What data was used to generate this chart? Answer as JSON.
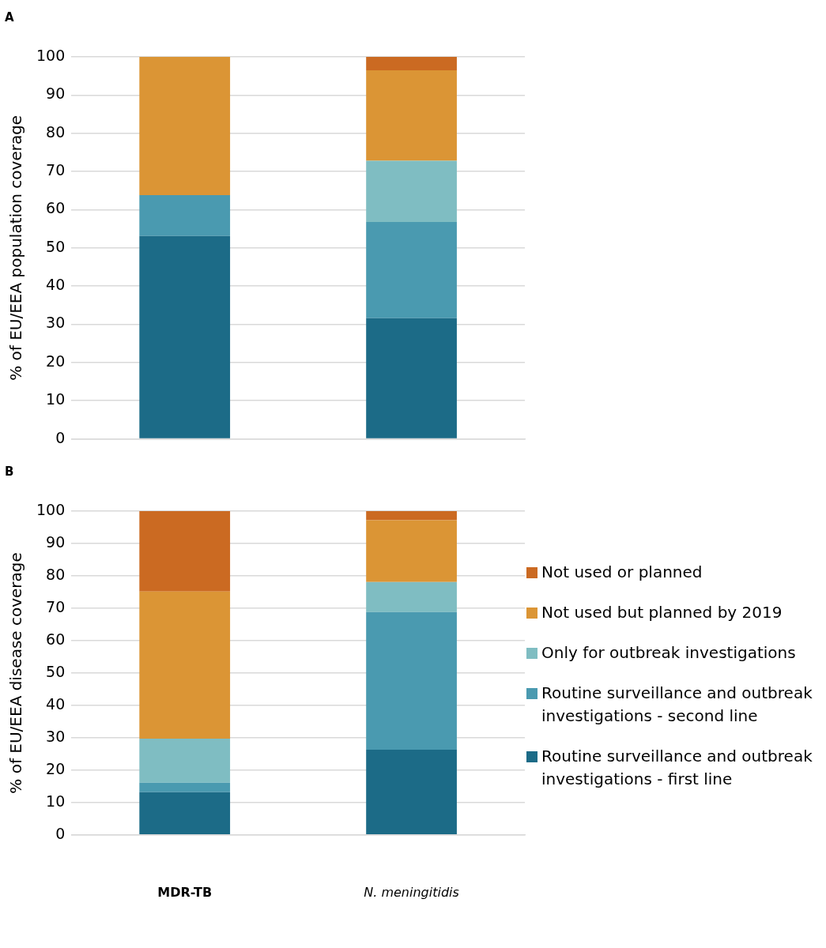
{
  "chart_data": [
    {
      "type": "bar",
      "title": "A",
      "ylabel": "% of EU/EEA population coverage",
      "categories": [
        null,
        null
      ],
      "stacked": true,
      "ylim": [
        0,
        100
      ],
      "yticks": [
        0,
        10,
        20,
        30,
        40,
        50,
        60,
        70,
        80,
        90,
        100
      ],
      "grid": "y",
      "legend": false,
      "tick_labels": "y",
      "series": [
        {
          "color": "#1c6b87",
          "values": [
            53.1,
            31.6
          ]
        },
        {
          "color": "#4a9ab0",
          "values": [
            10.7,
            25.2
          ]
        },
        {
          "color": "#7fbdc2",
          "values": [
            0,
            16.0
          ]
        },
        {
          "color": "#db9535",
          "values": [
            36.2,
            23.7
          ]
        },
        {
          "color": "#cb6a22",
          "values": [
            0,
            3.5
          ]
        }
      ]
    },
    {
      "type": "bar",
      "title": "B",
      "ylabel": "% of EU/EEA disease coverage",
      "categories": [
        "MDR-TB",
        "N. meningitidis"
      ],
      "stacked": true,
      "ylim": [
        0,
        100
      ],
      "yticks": [
        0,
        10,
        20,
        30,
        40,
        50,
        60,
        70,
        80,
        90,
        100
      ],
      "grid": "y",
      "legend": "right",
      "series": [
        {
          "name": "Routine surveillance and outbreak investigations - first line",
          "color": "#1c6b87",
          "values": [
            13.2,
            26.3
          ]
        },
        {
          "name": "Routine surveillance and outbreak investigations - second line",
          "color": "#4a9ab0",
          "values": [
            2.9,
            42.5
          ]
        },
        {
          "name": "Only for outbreak investigations",
          "color": "#7fbdc2",
          "values": [
            13.6,
            9.3
          ]
        },
        {
          "name": "Not used but planned by 2019",
          "color": "#db9535",
          "values": [
            45.5,
            19.1
          ]
        },
        {
          "name": "Not used or planned",
          "color": "#cb6a22",
          "values": [
            24.8,
            2.8
          ]
        }
      ]
    }
  ]
}
